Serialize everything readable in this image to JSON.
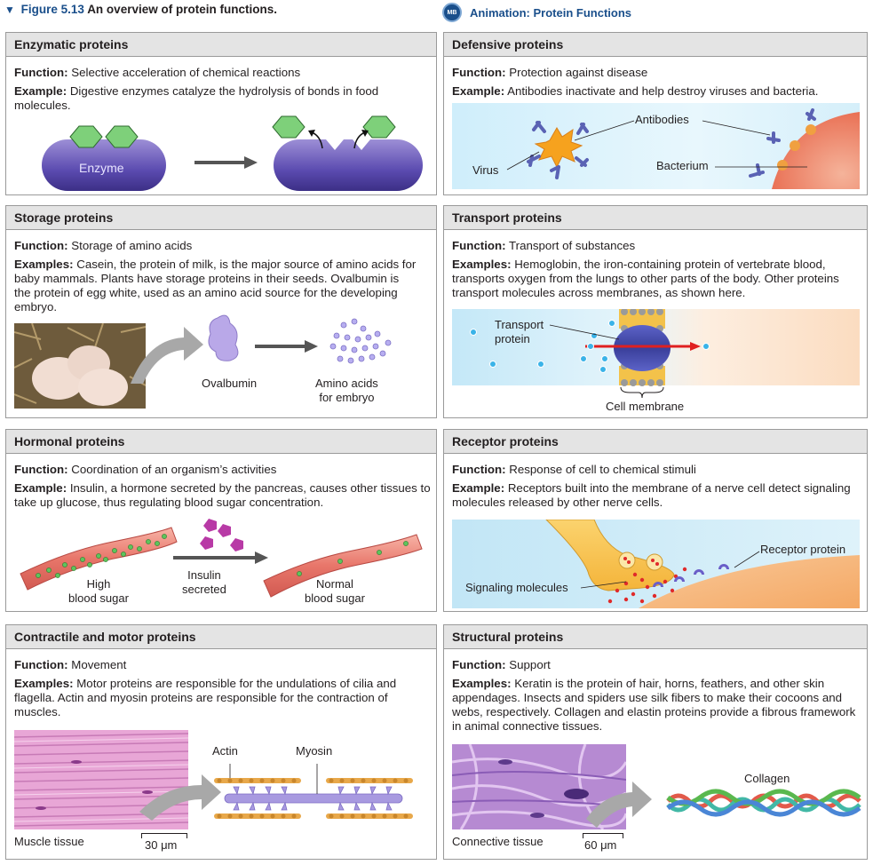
{
  "figure": {
    "label": "Figure 5.13",
    "caption": "An overview of protein functions.",
    "animation_badge": "MB",
    "animation_label": "Animation: Protein Functions"
  },
  "panels": {
    "enzymatic": {
      "title": "Enzymatic proteins",
      "function_label": "Function:",
      "function_text": "Selective acceleration of chemical reactions",
      "example_label": "Example:",
      "example_text": "Digestive enzymes catalyze the hydrolysis of bonds in food molecules.",
      "enzyme_label": "Enzyme"
    },
    "defensive": {
      "title": "Defensive proteins",
      "function_label": "Function:",
      "function_text": "Protection against disease",
      "example_label": "Example:",
      "example_text": "Antibodies inactivate and help destroy viruses and bacteria.",
      "antibodies_label": "Antibodies",
      "virus_label": "Virus",
      "bacterium_label": "Bacterium"
    },
    "storage": {
      "title": "Storage proteins",
      "function_label": "Function:",
      "function_text": "Storage of amino acids",
      "example_label": "Examples:",
      "example_text": "Casein, the protein of milk, is the major source of amino acids for baby mammals. Plants have storage proteins in their seeds. Ovalbumin is the protein of egg white, used as an amino acid source for the developing embryo.",
      "ovalbumin_label": "Ovalbumin",
      "amino_label_1": "Amino acids",
      "amino_label_2": "for embryo"
    },
    "transport": {
      "title": "Transport proteins",
      "function_label": "Function:",
      "function_text": "Transport of substances",
      "example_label": "Examples:",
      "example_text": "Hemoglobin, the iron-containing protein of vertebrate blood, transports oxygen from the lungs to other parts of the body. Other proteins transport molecules across membranes, as shown here.",
      "transport_label_1": "Transport",
      "transport_label_2": "protein",
      "membrane_label": "Cell membrane"
    },
    "hormonal": {
      "title": "Hormonal proteins",
      "function_label": "Function:",
      "function_text": "Coordination of an organism’s activities",
      "example_label": "Example:",
      "example_text": "Insulin, a hormone secreted by the pancreas, causes other tissues to take up glucose, thus regulating blood sugar concentration.",
      "high_1": "High",
      "high_2": "blood sugar",
      "insulin_1": "Insulin",
      "insulin_2": "secreted",
      "normal_1": "Normal",
      "normal_2": "blood sugar"
    },
    "receptor": {
      "title": "Receptor proteins",
      "function_label": "Function:",
      "function_text": "Response of cell to chemical stimuli",
      "example_label": "Example:",
      "example_text": "Receptors built into the membrane of a nerve cell detect signaling molecules released by other nerve cells.",
      "receptor_label": "Receptor protein",
      "signal_label": "Signaling molecules"
    },
    "contractile": {
      "title": "Contractile and motor proteins",
      "function_label": "Function:",
      "function_text": "Movement",
      "example_label": "Examples:",
      "example_text": "Motor proteins are responsible for the undulations of cilia and flagella. Actin and myosin proteins are responsible for the contraction of muscles.",
      "actin_label": "Actin",
      "myosin_label": "Myosin",
      "tissue_label": "Muscle tissue",
      "scale_label": "30 μm"
    },
    "structural": {
      "title": "Structural proteins",
      "function_label": "Function:",
      "function_text": "Support",
      "example_label": "Examples:",
      "example_text": "Keratin is the protein of hair, horns, feathers, and other skin appendages. Insects and spiders use silk fibers to make their cocoons and webs, respectively. Collagen and elastin proteins provide a fibrous framework in animal connective tissues.",
      "collagen_label": "Collagen",
      "tissue_label": "Connective tissue",
      "scale_label": "60 μm"
    }
  }
}
